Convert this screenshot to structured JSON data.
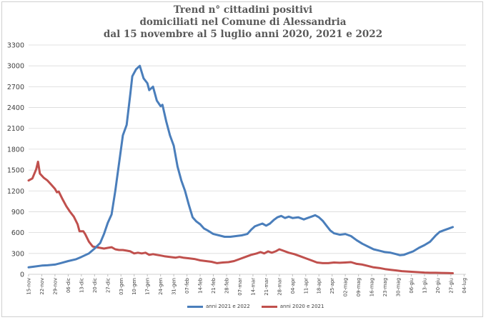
{
  "chart_data": {
    "type": "line",
    "title_lines": [
      "Trend n° cittadini positivi",
      "domiciliati nel Comune di Alessandria",
      "dal 15 novembre al 5 luglio anni 2020, 2021 e 2022"
    ],
    "xlabel": "",
    "ylabel": "",
    "ylim": [
      0,
      3300
    ],
    "yticks": [
      "0",
      "300",
      "600",
      "900",
      "1200",
      "1500",
      "1800",
      "2100",
      "2400",
      "2700",
      "3000",
      "3300"
    ],
    "grid": true,
    "legend_position": "bottom",
    "x_tick_labels": [
      "15-nov",
      "22-nov",
      "29-nov",
      "06-dic",
      "13-dic",
      "20-dic",
      "27-dic",
      "03-gen",
      "10-gen",
      "17-gen",
      "24-gen",
      "31-gen",
      "07-feb",
      "14-feb",
      "21-feb",
      "28-feb",
      "07-mar",
      "14-mar",
      "21-mar",
      "28-mar",
      "04-apr",
      "11-apr",
      "18-apr",
      "25-apr",
      "02-mag",
      "09-mag",
      "16-mag",
      "23-mag",
      "30-mag",
      "06-giu",
      "13-giu",
      "20-giu",
      "27-giu",
      "04-lug"
    ],
    "series": [
      {
        "name": "anni 2021 e 2022",
        "color": "#4a7ebb",
        "points": [
          [
            0,
            100
          ],
          [
            3,
            110
          ],
          [
            7,
            125
          ],
          [
            10,
            130
          ],
          [
            14,
            140
          ],
          [
            17,
            160
          ],
          [
            21,
            190
          ],
          [
            25,
            215
          ],
          [
            28,
            250
          ],
          [
            32,
            300
          ],
          [
            35,
            370
          ],
          [
            38,
            450
          ],
          [
            40,
            580
          ],
          [
            42,
            740
          ],
          [
            44,
            860
          ],
          [
            46,
            1200
          ],
          [
            48,
            1600
          ],
          [
            50,
            2000
          ],
          [
            52,
            2150
          ],
          [
            54,
            2600
          ],
          [
            55,
            2850
          ],
          [
            57,
            2950
          ],
          [
            59,
            3000
          ],
          [
            61,
            2820
          ],
          [
            63,
            2750
          ],
          [
            64,
            2650
          ],
          [
            66,
            2700
          ],
          [
            68,
            2500
          ],
          [
            70,
            2420
          ],
          [
            71,
            2440
          ],
          [
            73,
            2200
          ],
          [
            75,
            2000
          ],
          [
            77,
            1850
          ],
          [
            79,
            1550
          ],
          [
            81,
            1350
          ],
          [
            83,
            1200
          ],
          [
            85,
            1000
          ],
          [
            87,
            820
          ],
          [
            89,
            760
          ],
          [
            91,
            720
          ],
          [
            93,
            660
          ],
          [
            95,
            630
          ],
          [
            98,
            580
          ],
          [
            101,
            560
          ],
          [
            104,
            540
          ],
          [
            107,
            540
          ],
          [
            110,
            550
          ],
          [
            113,
            560
          ],
          [
            116,
            580
          ],
          [
            118,
            640
          ],
          [
            120,
            690
          ],
          [
            122,
            710
          ],
          [
            124,
            730
          ],
          [
            126,
            700
          ],
          [
            128,
            730
          ],
          [
            130,
            780
          ],
          [
            132,
            820
          ],
          [
            134,
            840
          ],
          [
            136,
            810
          ],
          [
            138,
            830
          ],
          [
            140,
            810
          ],
          [
            143,
            820
          ],
          [
            146,
            790
          ],
          [
            148,
            810
          ],
          [
            150,
            830
          ],
          [
            152,
            850
          ],
          [
            154,
            820
          ],
          [
            156,
            770
          ],
          [
            158,
            700
          ],
          [
            160,
            630
          ],
          [
            162,
            590
          ],
          [
            165,
            570
          ],
          [
            168,
            580
          ],
          [
            171,
            550
          ],
          [
            174,
            490
          ],
          [
            177,
            440
          ],
          [
            180,
            400
          ],
          [
            183,
            360
          ],
          [
            186,
            340
          ],
          [
            189,
            320
          ],
          [
            192,
            310
          ],
          [
            195,
            290
          ],
          [
            197,
            275
          ],
          [
            199,
            280
          ],
          [
            201,
            300
          ],
          [
            204,
            330
          ],
          [
            207,
            380
          ],
          [
            210,
            420
          ],
          [
            213,
            470
          ],
          [
            216,
            560
          ],
          [
            218,
            610
          ],
          [
            220,
            630
          ],
          [
            223,
            660
          ],
          [
            225,
            680
          ]
        ]
      },
      {
        "name": "anni 2020 e 2021",
        "color": "#c0504d",
        "points": [
          [
            0,
            1350
          ],
          [
            2,
            1380
          ],
          [
            4,
            1510
          ],
          [
            5,
            1620
          ],
          [
            6,
            1450
          ],
          [
            8,
            1390
          ],
          [
            10,
            1350
          ],
          [
            12,
            1290
          ],
          [
            14,
            1230
          ],
          [
            15,
            1180
          ],
          [
            16,
            1190
          ],
          [
            18,
            1080
          ],
          [
            20,
            980
          ],
          [
            22,
            900
          ],
          [
            24,
            830
          ],
          [
            26,
            720
          ],
          [
            27,
            620
          ],
          [
            29,
            620
          ],
          [
            30,
            580
          ],
          [
            32,
            470
          ],
          [
            34,
            400
          ],
          [
            36,
            390
          ],
          [
            38,
            380
          ],
          [
            40,
            370
          ],
          [
            42,
            380
          ],
          [
            44,
            390
          ],
          [
            46,
            360
          ],
          [
            48,
            350
          ],
          [
            50,
            350
          ],
          [
            52,
            340
          ],
          [
            54,
            330
          ],
          [
            56,
            300
          ],
          [
            58,
            310
          ],
          [
            60,
            300
          ],
          [
            62,
            310
          ],
          [
            64,
            280
          ],
          [
            66,
            290
          ],
          [
            68,
            280
          ],
          [
            70,
            270
          ],
          [
            72,
            260
          ],
          [
            75,
            250
          ],
          [
            78,
            240
          ],
          [
            80,
            250
          ],
          [
            82,
            240
          ],
          [
            85,
            230
          ],
          [
            88,
            220
          ],
          [
            91,
            200
          ],
          [
            94,
            190
          ],
          [
            97,
            180
          ],
          [
            100,
            160
          ],
          [
            103,
            170
          ],
          [
            106,
            175
          ],
          [
            109,
            190
          ],
          [
            112,
            220
          ],
          [
            115,
            250
          ],
          [
            118,
            280
          ],
          [
            121,
            300
          ],
          [
            123,
            320
          ],
          [
            125,
            300
          ],
          [
            127,
            330
          ],
          [
            129,
            310
          ],
          [
            131,
            330
          ],
          [
            133,
            360
          ],
          [
            135,
            340
          ],
          [
            138,
            310
          ],
          [
            141,
            290
          ],
          [
            144,
            260
          ],
          [
            147,
            230
          ],
          [
            150,
            200
          ],
          [
            153,
            170
          ],
          [
            156,
            160
          ],
          [
            159,
            160
          ],
          [
            162,
            170
          ],
          [
            165,
            165
          ],
          [
            168,
            170
          ],
          [
            171,
            175
          ],
          [
            174,
            150
          ],
          [
            177,
            140
          ],
          [
            180,
            120
          ],
          [
            183,
            100
          ],
          [
            186,
            90
          ],
          [
            189,
            75
          ],
          [
            192,
            65
          ],
          [
            195,
            55
          ],
          [
            198,
            45
          ],
          [
            201,
            40
          ],
          [
            204,
            35
          ],
          [
            207,
            30
          ],
          [
            210,
            25
          ],
          [
            213,
            22
          ],
          [
            216,
            22
          ],
          [
            219,
            20
          ],
          [
            222,
            18
          ],
          [
            225,
            15
          ]
        ]
      }
    ]
  }
}
